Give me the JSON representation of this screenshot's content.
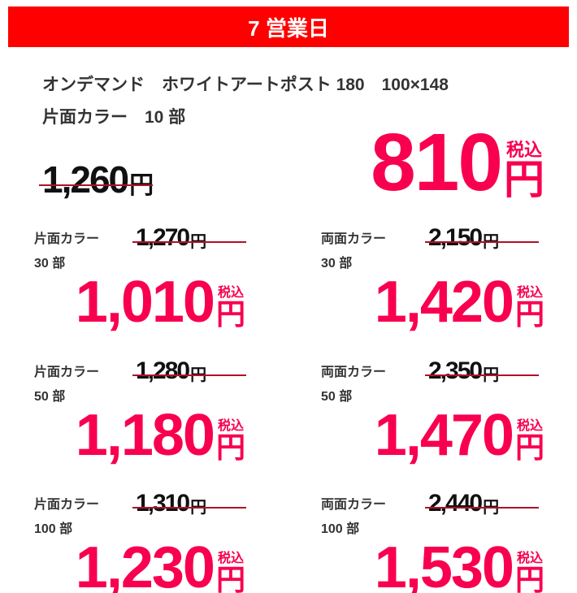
{
  "header": {
    "title": "7 営業日"
  },
  "product": {
    "name": "オンデマンド　ホワイトアートポスト 180　100×148",
    "option": "片面カラー　10 部"
  },
  "units": {
    "yen": "円",
    "tax": "税込"
  },
  "main": {
    "old_price": "1,260",
    "price": "810"
  },
  "items": [
    {
      "label": "片面カラー",
      "qty": "30 部",
      "old_price": "1,270",
      "price": "1,010"
    },
    {
      "label": "両面カラー",
      "qty": "30 部",
      "old_price": "2,150",
      "price": "1,420"
    },
    {
      "label": "片面カラー",
      "qty": "50 部",
      "old_price": "1,280",
      "price": "1,180"
    },
    {
      "label": "両面カラー",
      "qty": "50 部",
      "old_price": "2,350",
      "price": "1,470"
    },
    {
      "label": "片面カラー",
      "qty": "100 部",
      "old_price": "1,310",
      "price": "1,230"
    },
    {
      "label": "両面カラー",
      "qty": "100 部",
      "old_price": "2,440",
      "price": "1,530"
    }
  ]
}
